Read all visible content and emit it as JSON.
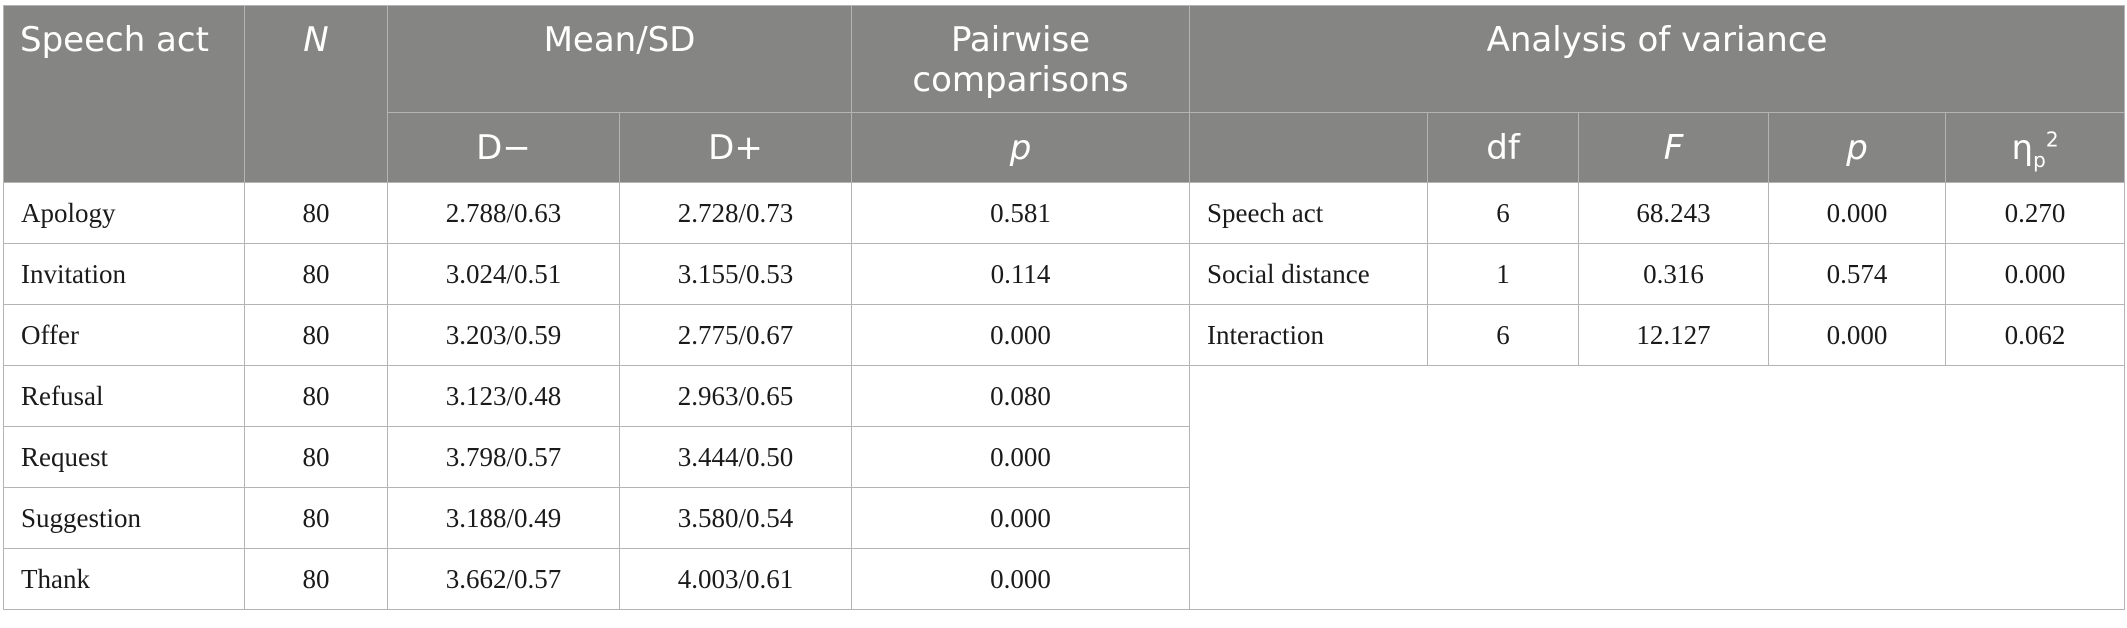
{
  "headers": {
    "speech_act": "Speech act",
    "n": "N",
    "mean_sd": "Mean/SD",
    "pairwise_line1": "Pairwise",
    "pairwise_line2": "comparisons",
    "anova": "Analysis of variance",
    "d_minus": "D−",
    "d_plus": "D+",
    "p_pairwise": "p",
    "df": "df",
    "f": "F",
    "p_anova": "p",
    "eta_base": "η",
    "eta_sub": "p",
    "eta_sup": "2"
  },
  "rows": [
    {
      "act": "Apology",
      "n": "80",
      "d_minus": "2.788/0.63",
      "d_plus": "2.728/0.73",
      "p": "0.581"
    },
    {
      "act": "Invitation",
      "n": "80",
      "d_minus": "3.024/0.51",
      "d_plus": "3.155/0.53",
      "p": "0.114"
    },
    {
      "act": "Offer",
      "n": "80",
      "d_minus": "3.203/0.59",
      "d_plus": "2.775/0.67",
      "p": "0.000"
    },
    {
      "act": "Refusal",
      "n": "80",
      "d_minus": "3.123/0.48",
      "d_plus": "2.963/0.65",
      "p": "0.080"
    },
    {
      "act": "Request",
      "n": "80",
      "d_minus": "3.798/0.57",
      "d_plus": "3.444/0.50",
      "p": "0.000"
    },
    {
      "act": "Suggestion",
      "n": "80",
      "d_minus": "3.188/0.49",
      "d_plus": "3.580/0.54",
      "p": "0.000"
    },
    {
      "act": "Thank",
      "n": "80",
      "d_minus": "3.662/0.57",
      "d_plus": "4.003/0.61",
      "p": "0.000"
    }
  ],
  "anova_rows": [
    {
      "source": "Speech act",
      "df": "6",
      "f": "68.243",
      "p": "0.000",
      "eta": "0.270"
    },
    {
      "source": "Social distance",
      "df": "1",
      "f": "0.316",
      "p": "0.574",
      "eta": "0.000"
    },
    {
      "source": "Interaction",
      "df": "6",
      "f": "12.127",
      "p": "0.000",
      "eta": "0.062"
    }
  ]
}
